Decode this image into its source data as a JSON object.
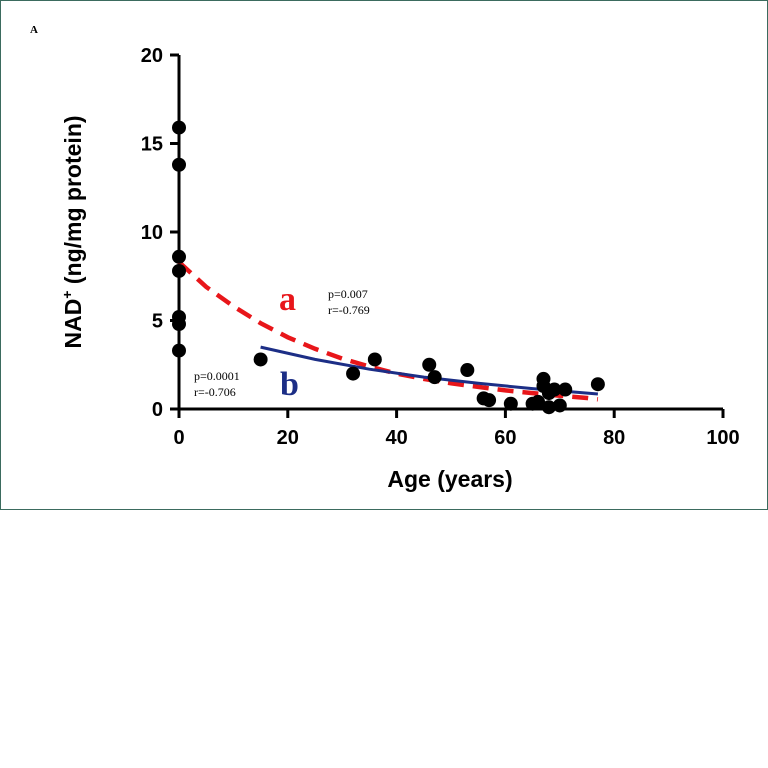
{
  "panel_label": "A",
  "chart_data": {
    "type": "scatter",
    "xlabel": "Age (years)",
    "ylabel_main": "NAD",
    "ylabel_sup": "+",
    "ylabel_rest": " (ng/mg protein)",
    "xlim": [
      0,
      100
    ],
    "ylim": [
      0,
      20
    ],
    "x_ticks": [
      0,
      20,
      40,
      60,
      80,
      100
    ],
    "y_ticks": [
      0,
      5,
      10,
      15,
      20
    ],
    "grid": false,
    "points": [
      {
        "x": 0,
        "y": 15.9
      },
      {
        "x": 0,
        "y": 13.8
      },
      {
        "x": 0,
        "y": 8.6
      },
      {
        "x": 0,
        "y": 7.8
      },
      {
        "x": 0,
        "y": 5.2
      },
      {
        "x": 0,
        "y": 4.8
      },
      {
        "x": 0,
        "y": 3.3
      },
      {
        "x": 15,
        "y": 2.8
      },
      {
        "x": 32,
        "y": 2.0
      },
      {
        "x": 36,
        "y": 2.8
      },
      {
        "x": 46,
        "y": 2.5
      },
      {
        "x": 47,
        "y": 1.8
      },
      {
        "x": 53,
        "y": 2.2
      },
      {
        "x": 56,
        "y": 0.6
      },
      {
        "x": 57,
        "y": 0.5
      },
      {
        "x": 61,
        "y": 0.3
      },
      {
        "x": 65,
        "y": 0.3
      },
      {
        "x": 66,
        "y": 0.4
      },
      {
        "x": 67,
        "y": 1.7
      },
      {
        "x": 67,
        "y": 1.3
      },
      {
        "x": 68,
        "y": 0.1
      },
      {
        "x": 68,
        "y": 0.9
      },
      {
        "x": 69,
        "y": 1.1
      },
      {
        "x": 70,
        "y": 0.2
      },
      {
        "x": 71,
        "y": 1.1
      },
      {
        "x": 77,
        "y": 1.4
      }
    ],
    "fits": [
      {
        "label": "a",
        "color": "#e8161a",
        "style": "dashed",
        "x": [
          0,
          5,
          10,
          15,
          20,
          25,
          30,
          35,
          40,
          45,
          50,
          55,
          60,
          65,
          70,
          75,
          77
        ],
        "y": [
          8.3,
          6.9,
          5.8,
          4.85,
          4.05,
          3.4,
          2.85,
          2.4,
          2.0,
          1.7,
          1.45,
          1.25,
          1.05,
          0.9,
          0.75,
          0.62,
          0.55
        ]
      },
      {
        "label": "b",
        "color": "#1c2e86",
        "style": "solid",
        "x": [
          15,
          25,
          35,
          45,
          55,
          65,
          77
        ],
        "y": [
          3.5,
          2.8,
          2.25,
          1.8,
          1.45,
          1.15,
          0.85
        ]
      }
    ],
    "annotations": [
      {
        "curve": "a",
        "p": "p=0.007",
        "r": "r=-0.769"
      },
      {
        "curve": "b",
        "p": "p=0.0001",
        "r": "r=-0.706"
      }
    ]
  }
}
